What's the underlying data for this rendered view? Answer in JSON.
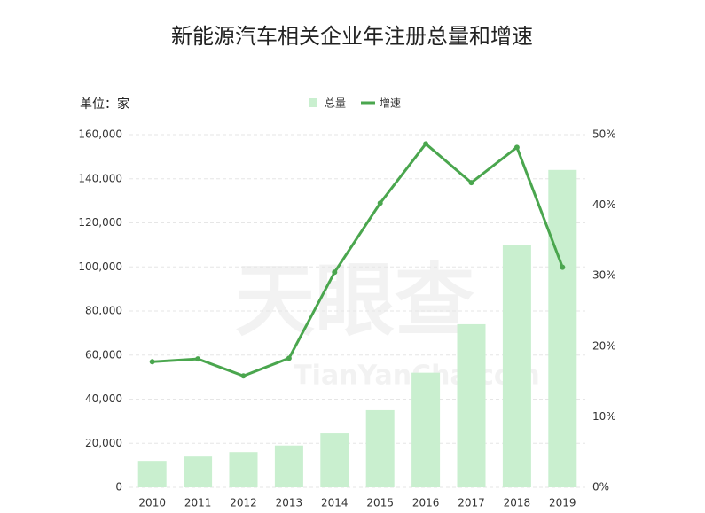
{
  "chart_data": {
    "type": "bar-line",
    "title": "新能源汽车相关企业年注册总量和增速",
    "unit_label": "单位：家",
    "watermark": [
      "天眼查",
      "TianYanCha.com"
    ],
    "categories": [
      "2010",
      "2011",
      "2012",
      "2013",
      "2014",
      "2015",
      "2016",
      "2017",
      "2018",
      "2019"
    ],
    "series": [
      {
        "name": "总量",
        "type": "bar",
        "color": "#c9efcf",
        "values": [
          12000,
          14000,
          16000,
          19000,
          24500,
          35000,
          52000,
          74000,
          110000,
          144000
        ]
      },
      {
        "name": "增速",
        "type": "line",
        "axis": "y2",
        "color": "#4aa64e",
        "values": [
          17.8,
          18.2,
          15.8,
          18.3,
          30.5,
          40.3,
          48.7,
          43.2,
          48.2,
          31.2
        ]
      }
    ],
    "ylim": [
      0,
      160000
    ],
    "yticks": [
      0,
      {
        "value": 20000,
        "label": "20,000"
      },
      {
        "value": 40000,
        "label": "40,000"
      },
      {
        "value": 60000,
        "label": "60,000"
      },
      {
        "value": 80000,
        "label": "80,000"
      },
      {
        "value": 100000,
        "label": "100,000"
      },
      {
        "value": 120000,
        "label": "120,000"
      },
      {
        "value": 140000,
        "label": "140,000"
      },
      {
        "value": 160000,
        "label": "160,000"
      }
    ],
    "y2lim": [
      0,
      50
    ],
    "y2ticks": [
      {
        "value": 0,
        "label": "0%"
      },
      {
        "value": 10,
        "label": "10%"
      },
      {
        "value": 20,
        "label": "20%"
      },
      {
        "value": 30,
        "label": "30%"
      },
      {
        "value": 40,
        "label": "40%"
      },
      {
        "value": 50,
        "label": "50%"
      }
    ],
    "grid": true
  }
}
